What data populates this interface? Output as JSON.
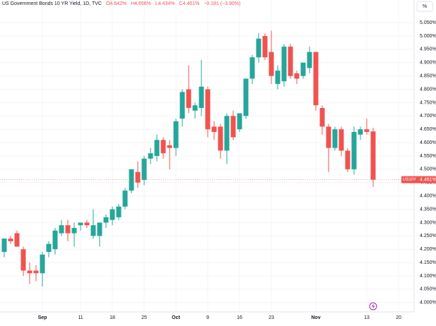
{
  "chart_data": {
    "type": "candlestick",
    "header": {
      "title": "US Government Bonds 10 YR Yield, 1D, TVC",
      "open": "O4.642%",
      "high": "H4.656%",
      "low": "L4.434%",
      "close": "C4.461%",
      "change": "−0.181 (−3.90%)"
    },
    "scale_button": "%",
    "categories": [
      null,
      null,
      null,
      null,
      null,
      null,
      "Sep",
      null,
      null,
      null,
      null,
      null,
      "11",
      null,
      null,
      null,
      null,
      "18",
      null,
      null,
      null,
      null,
      "25",
      null,
      null,
      null,
      null,
      "Oct",
      null,
      null,
      null,
      null,
      "9",
      null,
      null,
      null,
      null,
      "16",
      null,
      null,
      null,
      null,
      "23",
      null,
      null,
      null,
      null,
      null,
      null,
      "Nov",
      null,
      null,
      null,
      null,
      null,
      null,
      null,
      "13",
      null,
      null,
      null,
      null,
      "20"
    ],
    "open": [
      4.19,
      4.24,
      4.26,
      4.2,
      4.12,
      4.12,
      4.11,
      4.19,
      4.2,
      4.26,
      4.29,
      4.26,
      4.29,
      4.3,
      4.25,
      4.25,
      4.3,
      4.31,
      4.32,
      4.36,
      4.42,
      4.49,
      4.46,
      4.54,
      4.55,
      4.61,
      4.59,
      4.58,
      4.69,
      4.8,
      4.72,
      4.73,
      4.8,
      4.66,
      4.66,
      4.57,
      4.7,
      4.65,
      4.7,
      4.84,
      4.92,
      5.0,
      4.94,
      4.82,
      4.83,
      4.96,
      4.86,
      4.85,
      4.88,
      4.94,
      4.73,
      4.66,
      4.58,
      4.65,
      4.57,
      4.5,
      4.63,
      4.65,
      4.642,
      null,
      null,
      null,
      null
    ],
    "high": [
      4.24,
      4.25,
      4.27,
      4.21,
      4.15,
      4.14,
      4.19,
      4.23,
      4.28,
      4.31,
      4.31,
      4.3,
      4.3,
      4.31,
      4.35,
      4.3,
      4.33,
      4.36,
      4.37,
      4.43,
      4.5,
      4.53,
      4.55,
      4.58,
      4.63,
      4.62,
      4.61,
      4.69,
      4.8,
      4.89,
      4.75,
      4.91,
      4.81,
      4.68,
      4.67,
      4.71,
      4.72,
      4.71,
      4.84,
      4.93,
      5.01,
      5.01,
      5.02,
      4.89,
      4.97,
      4.97,
      4.87,
      4.9,
      4.96,
      4.94,
      4.74,
      4.67,
      4.66,
      4.66,
      4.58,
      4.66,
      4.66,
      4.69,
      4.656,
      null,
      null,
      null,
      null
    ],
    "low": [
      4.17,
      4.22,
      4.21,
      4.1,
      4.07,
      4.08,
      4.06,
      4.17,
      4.18,
      4.25,
      4.23,
      4.21,
      4.27,
      4.28,
      4.24,
      4.21,
      4.28,
      4.29,
      4.31,
      4.35,
      4.41,
      4.43,
      4.44,
      4.52,
      4.53,
      4.54,
      4.5,
      4.55,
      4.66,
      4.71,
      4.69,
      4.7,
      4.62,
      4.61,
      4.54,
      4.52,
      4.61,
      4.64,
      4.69,
      4.82,
      4.9,
      4.91,
      4.82,
      4.8,
      4.81,
      4.84,
      4.82,
      4.84,
      4.86,
      4.72,
      4.63,
      4.49,
      4.57,
      4.55,
      4.49,
      4.48,
      4.61,
      4.63,
      4.434,
      null,
      null,
      null,
      null
    ],
    "close": [
      4.24,
      4.23,
      4.21,
      4.12,
      4.11,
      4.11,
      4.18,
      4.22,
      4.27,
      4.29,
      4.26,
      4.28,
      4.3,
      4.29,
      4.29,
      4.3,
      4.32,
      4.35,
      4.36,
      4.42,
      4.5,
      4.45,
      4.54,
      4.56,
      4.61,
      4.56,
      4.58,
      4.68,
      4.79,
      4.73,
      4.74,
      4.81,
      4.65,
      4.64,
      4.57,
      4.7,
      4.62,
      4.71,
      4.84,
      4.92,
      4.99,
      4.92,
      4.85,
      4.87,
      4.96,
      4.85,
      4.84,
      4.9,
      4.94,
      4.74,
      4.66,
      4.58,
      4.65,
      4.57,
      4.5,
      4.64,
      4.65,
      4.64,
      4.461,
      null,
      null,
      null,
      null
    ],
    "up_color": "#26a69a",
    "down_color": "#ef5350",
    "last_price": {
      "value": 4.461,
      "label": "4.461%",
      "symbol": "US10Y"
    },
    "ylim": [
      3.965,
      5.135
    ],
    "yticks": [
      {
        "value": 4.0,
        "label": "4.000%"
      },
      {
        "value": 4.05,
        "label": "4.050%"
      },
      {
        "value": 4.1,
        "label": "4.100%"
      },
      {
        "value": 4.15,
        "label": "4.150%"
      },
      {
        "value": 4.2,
        "label": "4.200%"
      },
      {
        "value": 4.25,
        "label": "4.250%"
      },
      {
        "value": 4.3,
        "label": "4.300%"
      },
      {
        "value": 4.35,
        "label": "4.350%"
      },
      {
        "value": 4.4,
        "label": "4.400%"
      },
      {
        "value": 4.45,
        "label": "4.450%"
      },
      {
        "value": 4.5,
        "label": "4.500%"
      },
      {
        "value": 4.55,
        "label": "4.550%"
      },
      {
        "value": 4.6,
        "label": "4.600%"
      },
      {
        "value": 4.65,
        "label": "4.650%"
      },
      {
        "value": 4.7,
        "label": "4.700%"
      },
      {
        "value": 4.75,
        "label": "4.750%"
      },
      {
        "value": 4.8,
        "label": "4.800%"
      },
      {
        "value": 4.85,
        "label": "4.850%"
      },
      {
        "value": 4.9,
        "label": "4.900%"
      },
      {
        "value": 4.95,
        "label": "4.950%"
      },
      {
        "value": 5.0,
        "label": "5.000%"
      },
      {
        "value": 5.05,
        "label": "5.050%"
      }
    ],
    "grid": true
  }
}
